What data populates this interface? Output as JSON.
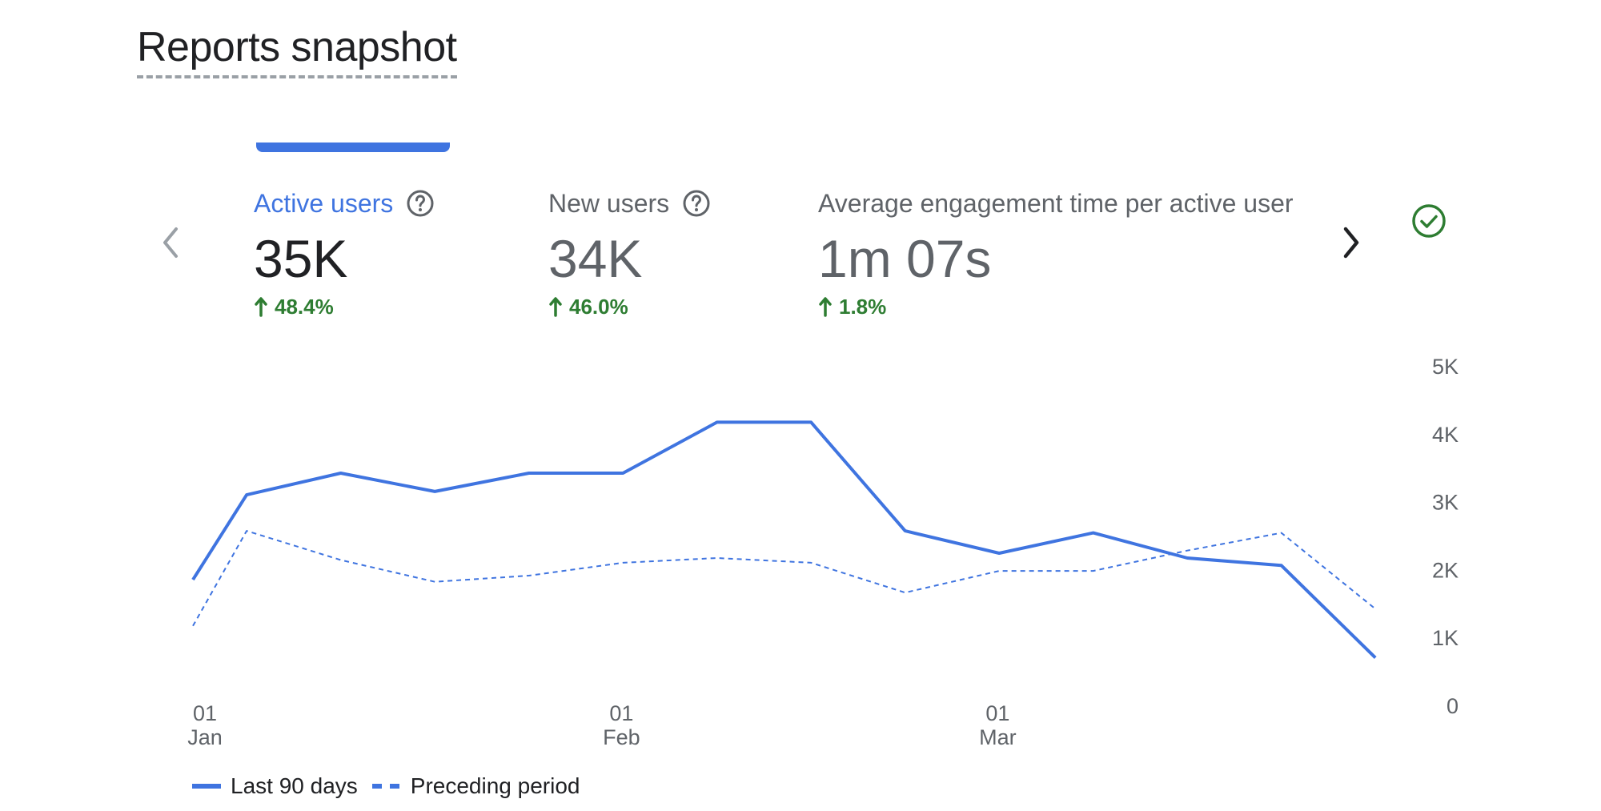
{
  "header": {
    "title": "Reports snapshot"
  },
  "metrics": [
    {
      "label": "Active users",
      "value": "35K",
      "delta": "48.4%",
      "active": true
    },
    {
      "label": "New users",
      "value": "34K",
      "delta": "46.0%",
      "active": false
    },
    {
      "label": "Average engagement time per active user",
      "value": "1m 07s",
      "delta": "1.8%",
      "active": false
    }
  ],
  "colors": {
    "accent": "#3f74e0",
    "positive": "#2e7d32",
    "check": "#2e7d32"
  },
  "icons": {
    "prev": "chevron-left-icon",
    "next": "chevron-right-icon",
    "help": "help-circle-icon",
    "up": "arrow-up-icon",
    "check": "check-circle-icon"
  },
  "chart_data": {
    "type": "line",
    "title": "",
    "xlabel": "",
    "ylabel": "",
    "ylim": [
      0,
      5000
    ],
    "yticks": [
      0,
      1000,
      2000,
      3000,
      4000,
      5000
    ],
    "ytick_labels": [
      "0",
      "1K",
      "2K",
      "3K",
      "4K",
      "5K"
    ],
    "x_range": [
      0,
      89
    ],
    "xticks": [
      {
        "x": 0,
        "line1": "01",
        "line2": "Jan"
      },
      {
        "x": 31,
        "line1": "01",
        "line2": "Feb"
      },
      {
        "x": 59,
        "line1": "01",
        "line2": "Mar"
      }
    ],
    "series": [
      {
        "name": "Last 90 days",
        "style": "solid",
        "x": [
          0,
          4,
          11,
          18,
          25,
          32,
          39,
          46,
          53,
          60,
          67,
          74,
          81,
          88
        ],
        "values": [
          1850,
          3100,
          3420,
          3150,
          3420,
          3420,
          4170,
          4170,
          2570,
          2240,
          2540,
          2170,
          2060,
          700
        ]
      },
      {
        "name": "Preceding period",
        "style": "dashed",
        "x": [
          0,
          4,
          11,
          18,
          25,
          32,
          39,
          46,
          53,
          60,
          67,
          74,
          81,
          88
        ],
        "values": [
          1170,
          2570,
          2140,
          1820,
          1910,
          2100,
          2170,
          2100,
          1660,
          1980,
          1980,
          2280,
          2540,
          1420
        ]
      }
    ],
    "legend_position": "bottom-left"
  }
}
